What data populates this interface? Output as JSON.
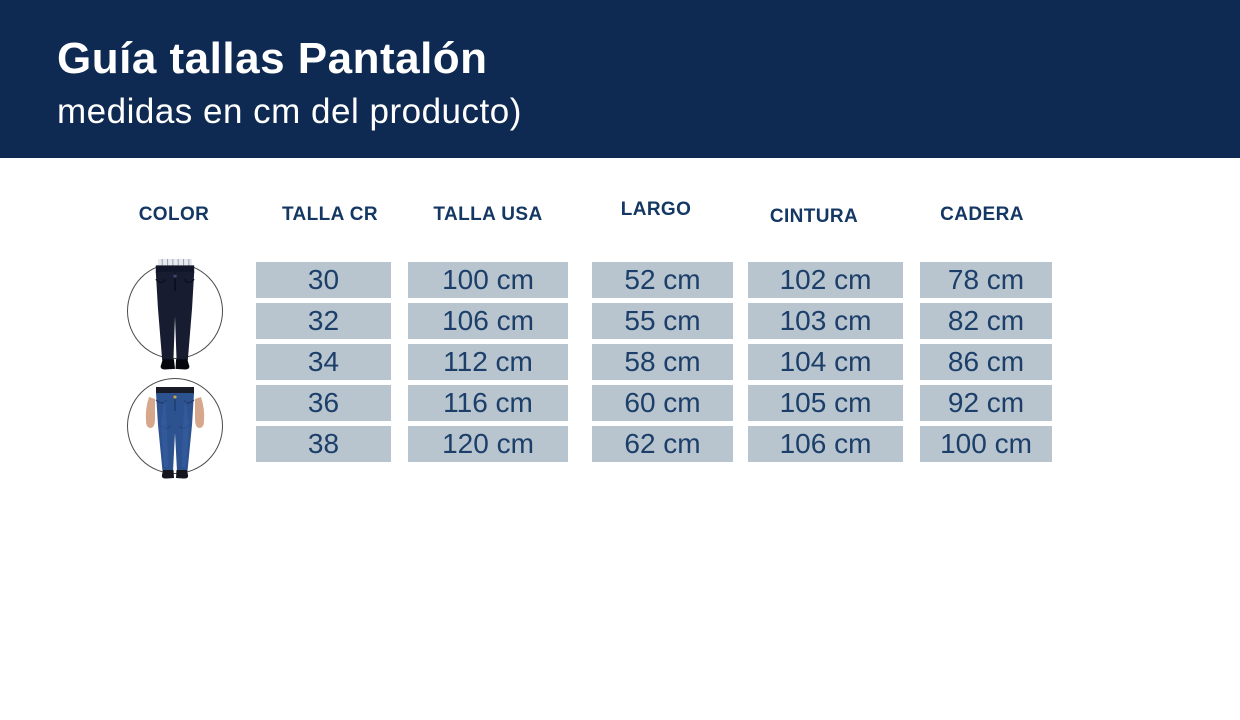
{
  "header": {
    "title": "Guía tallas Pantalón",
    "subtitle": "medidas en cm del producto)"
  },
  "table": {
    "columns": [
      {
        "key": "color",
        "label": "COLOR"
      },
      {
        "key": "talla-cr",
        "label": "TALLA CR"
      },
      {
        "key": "talla-usa",
        "label": "TALLA USA"
      },
      {
        "key": "largo",
        "label": "LARGO"
      },
      {
        "key": "cintura",
        "label": "CINTURA"
      },
      {
        "key": "cadera",
        "label": "CADERA"
      }
    ],
    "rows": [
      [
        "30",
        "100 cm",
        "52 cm",
        "102 cm",
        "78 cm"
      ],
      [
        "32",
        "106 cm",
        "55 cm",
        "103 cm",
        "82 cm"
      ],
      [
        "34",
        "112 cm",
        "58 cm",
        "104 cm",
        "86 cm"
      ],
      [
        "36",
        "116 cm",
        "60 cm",
        "105 cm",
        "92 cm"
      ],
      [
        "38",
        "120 cm",
        "62 cm",
        "106 cm",
        "100 cm"
      ]
    ],
    "color_options": [
      {
        "name": "jeans-azul-oscuro",
        "color": "#171c30"
      },
      {
        "name": "jeans-azul",
        "color": "#2d5290"
      }
    ]
  },
  "colors": {
    "banner_bg": "#0e2a52",
    "banner_text": "#ffffff",
    "column_header_text": "#143863",
    "cell_bg": "#b8c4ce",
    "cell_text": "#1c3f6a"
  }
}
